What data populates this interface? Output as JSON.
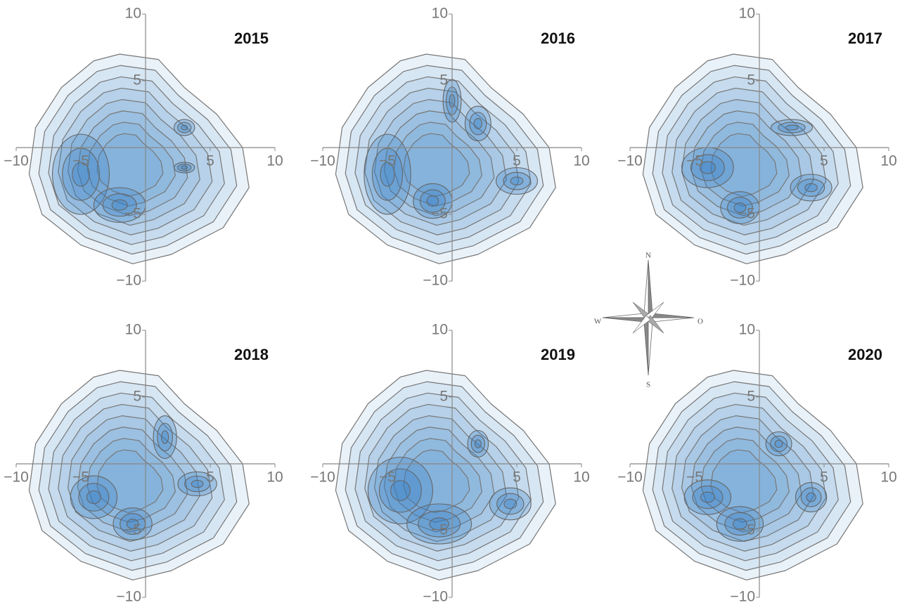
{
  "chart_data": [
    {
      "type": "contour",
      "title": "2015",
      "xlim": [
        -10,
        10
      ],
      "ylim": [
        -10,
        10
      ],
      "xticks": [
        {
          "value": -10,
          "label": "−10"
        },
        {
          "value": -5,
          "label": "−5"
        },
        5,
        10
      ],
      "yticks": [
        10,
        5,
        {
          "value": -5,
          "label": "−5"
        },
        {
          "value": -10,
          "label": "−10"
        }
      ],
      "color": "#2f7bc4"
    },
    {
      "type": "contour",
      "title": "2016",
      "xlim": [
        -10,
        10
      ],
      "ylim": [
        -10,
        10
      ],
      "xticks": [
        {
          "value": -10,
          "label": "−10"
        },
        {
          "value": -5,
          "label": "−5"
        },
        5,
        10
      ],
      "yticks": [
        10,
        5,
        {
          "value": -5,
          "label": "−5"
        },
        {
          "value": -10,
          "label": "−10"
        }
      ],
      "color": "#2f7bc4"
    },
    {
      "type": "contour",
      "title": "2017",
      "xlim": [
        -10,
        10
      ],
      "ylim": [
        -10,
        10
      ],
      "xticks": [
        {
          "value": -10,
          "label": "−10"
        },
        {
          "value": -5,
          "label": "−5"
        },
        5,
        10
      ],
      "yticks": [
        10,
        5,
        {
          "value": -5,
          "label": "−5"
        },
        {
          "value": -10,
          "label": "−10"
        }
      ],
      "color": "#2f7bc4"
    },
    {
      "type": "contour",
      "title": "2018",
      "xlim": [
        -10,
        10
      ],
      "ylim": [
        -10,
        10
      ],
      "xticks": [
        {
          "value": -10,
          "label": "−10"
        },
        {
          "value": -5,
          "label": "−5"
        },
        5,
        10
      ],
      "yticks": [
        10,
        5,
        {
          "value": -5,
          "label": "−5"
        },
        {
          "value": -10,
          "label": "−10"
        }
      ],
      "color": "#2f7bc4"
    },
    {
      "type": "contour",
      "title": "2019",
      "xlim": [
        -10,
        10
      ],
      "ylim": [
        -10,
        10
      ],
      "xticks": [
        {
          "value": -10,
          "label": "−10"
        },
        {
          "value": -5,
          "label": "−5"
        },
        5,
        10
      ],
      "yticks": [
        10,
        5,
        {
          "value": -5,
          "label": "−5"
        },
        {
          "value": -10,
          "label": "−10"
        }
      ],
      "color": "#2f7bc4"
    },
    {
      "type": "contour",
      "title": "2020",
      "xlim": [
        -10,
        10
      ],
      "ylim": [
        -10,
        10
      ],
      "xticks": [
        {
          "value": -10,
          "label": "−10"
        },
        {
          "value": -5,
          "label": "−5"
        },
        5,
        10
      ],
      "yticks": [
        10,
        5,
        {
          "value": -5,
          "label": "−5"
        },
        {
          "value": -10,
          "label": "−10"
        }
      ],
      "color": "#2f7bc4"
    }
  ],
  "compass": {
    "north": "N",
    "west": "W",
    "east": "O",
    "south": "S"
  }
}
